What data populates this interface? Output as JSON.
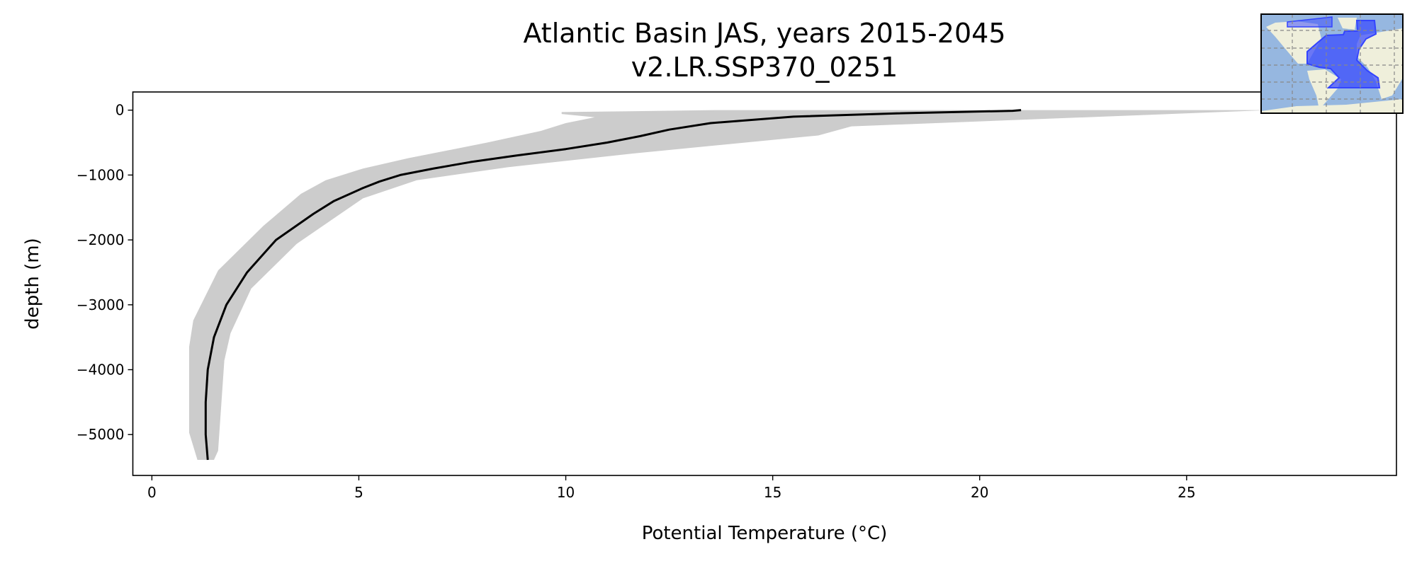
{
  "chart_data": {
    "type": "line",
    "title": "Atlantic Basin JAS, years 2015-2045",
    "subtitle": "v2.LR.SSP370_0251",
    "xlabel": "Potential Temperature (°C)",
    "ylabel": "depth (m)",
    "xlim": [
      -0.46,
      30.07
    ],
    "ylim": [
      -5630,
      280
    ],
    "xticks": [
      0,
      5,
      10,
      15,
      20,
      25
    ],
    "yticks": [
      0,
      -1000,
      -2000,
      -3000,
      -4000,
      -5000
    ],
    "xtick_labels": [
      "0",
      "5",
      "10",
      "15",
      "20",
      "25"
    ],
    "ytick_labels": [
      "0",
      "−1000",
      "−2000",
      "−3000",
      "−4000",
      "−5000"
    ],
    "grid": false,
    "colors": {
      "mean_line": "#000000",
      "range_band": "#cccccc",
      "region_fill": "#3344ff",
      "ocean": "#96b7e0",
      "land": "#efefdb"
    },
    "series": [
      {
        "kind": "line",
        "temperature": [
          21.0,
          20.8,
          18.0,
          15.5,
          13.5,
          12.5,
          11.8,
          11.0,
          10.0,
          8.8,
          7.7,
          6.8,
          6.0,
          5.5,
          5.1,
          4.4,
          3.9,
          3.0,
          2.3,
          1.8,
          1.5,
          1.35,
          1.3,
          1.3,
          1.35
        ],
        "depth": [
          0,
          -10,
          -50,
          -100,
          -200,
          -300,
          -400,
          -500,
          -600,
          -700,
          -800,
          -900,
          -1000,
          -1100,
          -1200,
          -1400,
          -1600,
          -2000,
          -2500,
          -3000,
          -3500,
          -4000,
          -4500,
          -5000,
          -5390
        ]
      },
      {
        "kind": "band",
        "depth": [
          0,
          -30,
          -60,
          -110,
          -200,
          -320,
          -500,
          -740,
          -900,
          -1080,
          -1290,
          -1780,
          -2470,
          -3240,
          -3650,
          -4970,
          -5390
        ],
        "min": [
          13.6,
          9.9,
          9.9,
          10.7,
          10.0,
          9.4,
          8.1,
          6.2,
          5.1,
          4.2,
          3.6,
          2.7,
          1.6,
          1.0,
          0.9,
          0.9,
          1.1
        ],
        "depth_max": [
          0,
          -250,
          -390,
          -670,
          -880,
          -1080,
          -1360,
          -2060,
          -2750,
          -3440,
          -3860,
          -5250,
          -5390
        ],
        "max": [
          27.0,
          16.9,
          16.1,
          11.6,
          8.6,
          6.4,
          5.1,
          3.5,
          2.4,
          1.9,
          1.75,
          1.6,
          1.5
        ]
      }
    ]
  },
  "inset_map": {
    "description_region": "Atlantic Basin"
  }
}
